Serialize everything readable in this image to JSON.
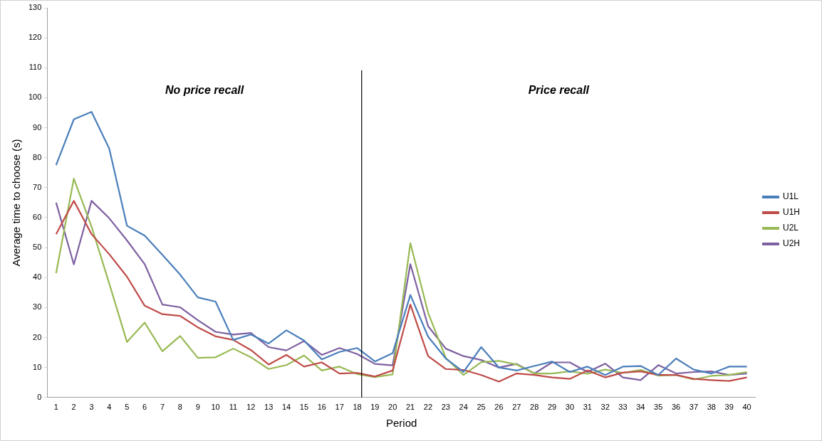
{
  "chart_data": {
    "type": "line",
    "xlabel": "Period",
    "ylabel": "Average time to choose (s)",
    "x": [
      1,
      2,
      3,
      4,
      5,
      6,
      7,
      8,
      9,
      10,
      11,
      12,
      13,
      14,
      15,
      16,
      17,
      18,
      19,
      20,
      21,
      22,
      23,
      24,
      25,
      26,
      27,
      28,
      29,
      30,
      31,
      32,
      33,
      34,
      35,
      36,
      37,
      38,
      39,
      40
    ],
    "xlim": [
      0.5,
      40.5
    ],
    "xticks": [
      1,
      2,
      3,
      4,
      5,
      6,
      7,
      8,
      9,
      10,
      11,
      12,
      13,
      14,
      15,
      16,
      17,
      18,
      19,
      20,
      21,
      22,
      23,
      24,
      25,
      26,
      27,
      28,
      29,
      30,
      31,
      32,
      33,
      34,
      35,
      36,
      37,
      38,
      39,
      40
    ],
    "ylim": [
      0,
      130
    ],
    "yticks": [
      0,
      10,
      20,
      30,
      40,
      50,
      60,
      70,
      80,
      90,
      100,
      110,
      120,
      130
    ],
    "grid": false,
    "legend": "right",
    "marker": "none",
    "line_style": "solid",
    "series": [
      {
        "name": "U1L",
        "color": "#4a7ebb",
        "values": [
          77.5,
          92.8,
          95.3,
          83,
          57.3,
          54,
          47.6,
          41,
          33.4,
          32,
          19.2,
          21,
          18,
          22.4,
          19,
          12.7,
          15.2,
          16.5,
          12,
          14.8,
          34.2,
          20.3,
          13,
          8.5,
          16.8,
          10,
          9,
          10.5,
          12,
          8.5,
          10.3,
          7.5,
          10.3,
          10.5,
          7.5,
          13,
          9.3,
          8,
          10.3,
          10.3
        ]
      },
      {
        "name": "U1H",
        "color": "#be4b48",
        "values": [
          54.5,
          65.6,
          54.5,
          47.8,
          40.3,
          30.6,
          27.8,
          27.2,
          23.4,
          20.4,
          19.2,
          15.8,
          11,
          14.2,
          10.3,
          11.7,
          8,
          8.2,
          7,
          9,
          31,
          13.8,
          9.5,
          9.2,
          7.5,
          5.3,
          8,
          7.5,
          6.7,
          6.2,
          9,
          6.7,
          8.3,
          8.7,
          7.5,
          7.5,
          6.2,
          5.8,
          5.5,
          6.7
        ]
      },
      {
        "name": "U2L",
        "color": "#98b954",
        "values": [
          41.5,
          73,
          57,
          38,
          18.5,
          25,
          15.4,
          20.5,
          13.2,
          13.4,
          16.3,
          13.4,
          9.5,
          10.8,
          14,
          9,
          10.3,
          7.8,
          6.8,
          7.7,
          51.5,
          28.3,
          13.2,
          7.5,
          11.8,
          12.2,
          11,
          8,
          8,
          8.7,
          7.9,
          9.3,
          8.2,
          9.2,
          7.3,
          7.5,
          6,
          7.2,
          7.5,
          8.5
        ]
      },
      {
        "name": "U2H",
        "color": "#7d60a0",
        "values": [
          65,
          44.4,
          65.6,
          59.8,
          52.4,
          44.5,
          31,
          30.1,
          25.8,
          21.9,
          21,
          21.5,
          16.8,
          15.7,
          18.8,
          14.2,
          16.5,
          14.5,
          11.2,
          10.7,
          44.5,
          23.8,
          16.3,
          13.8,
          12.5,
          10,
          11.2,
          8,
          11.7,
          11.7,
          8.5,
          11.3,
          6.7,
          5.8,
          10.8,
          8,
          8.5,
          8.7,
          7.5,
          8
        ]
      }
    ],
    "ref_lines": [
      {
        "axis": "x",
        "value": 18.25,
        "color": "#000000"
      }
    ],
    "annotations": [
      "No price recall",
      "Price recall"
    ]
  }
}
